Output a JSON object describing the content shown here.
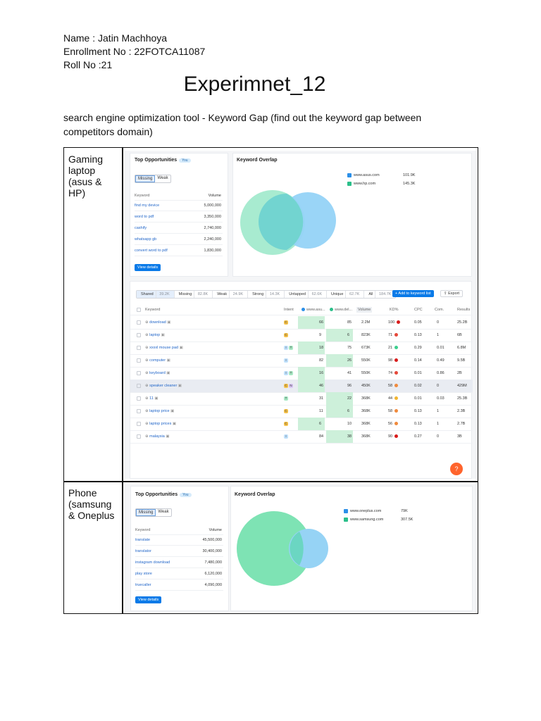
{
  "header": {
    "name": "Name :  Jatin Machhoya",
    "enrollment": "Enrollment No : 22FOTCA11087",
    "roll": "Roll No :21"
  },
  "title": "Experimnet_12",
  "intro": "search engine optimization tool - Keyword Gap (find out the keyword gap between competitors domain)",
  "rows": [
    {
      "label": "Gaming laptop (asus & HP)",
      "top": {
        "title": "Top Opportunities",
        "badge": "You",
        "tabs": [
          "Missing",
          "Weak"
        ],
        "col_keyword": "Keyword",
        "col_volume": "Volume",
        "items": [
          {
            "kw": "find my device",
            "vol": "5,000,000"
          },
          {
            "kw": "word to pdf",
            "vol": "3,350,000"
          },
          {
            "kw": "cashify",
            "vol": "2,740,000"
          },
          {
            "kw": "whatsapp gb",
            "vol": "2,240,000"
          },
          {
            "kw": "convert word to pdf",
            "vol": "1,830,000"
          }
        ],
        "button": "View details"
      },
      "overlap": {
        "title": "Keyword Overlap",
        "domains": [
          {
            "name": "www.asus.com",
            "count": "101.9K",
            "color": "#a4ebcf"
          },
          {
            "name": "www.hp.com",
            "count": "145.3K",
            "color": "#8ed0f7"
          }
        ]
      },
      "table": {
        "tabs": [
          {
            "label": "Shared",
            "n": "39.2K"
          },
          {
            "label": "Missing",
            "n": "82.8K"
          },
          {
            "label": "Weak",
            "n": "24.9K"
          },
          {
            "label": "Strong",
            "n": "14.3K"
          },
          {
            "label": "Untapped",
            "n": "62.6K"
          },
          {
            "label": "Unique",
            "n": "62.7K"
          },
          {
            "label": "All",
            "n": "184.7K"
          }
        ],
        "add_button": "+ Add to keyword list",
        "export_button": "Export",
        "headers": {
          "keyword": "Keyword",
          "intent": "Intent",
          "d1": "www.asu...",
          "d2": "www.del...",
          "volume": "Volume",
          "kd": "KD%",
          "cpc": "CPC",
          "com": "Com.",
          "results": "Results"
        },
        "rows": [
          {
            "kw": "download",
            "intent": [
              "C"
            ],
            "d1": "66",
            "d2": "85",
            "vol": "2.2M",
            "kd": "100",
            "kdc": "#d81b1b",
            "cpc": "0.05",
            "com": "0",
            "res": "25.2B"
          },
          {
            "kw": "laptop",
            "intent": [
              "C"
            ],
            "d1": "9",
            "d2": "6",
            "vol": "823K",
            "kd": "71",
            "kdc": "#e5483a",
            "cpc": "0.13",
            "com": "1",
            "res": "6B"
          },
          {
            "kw": "xxxxl mouse pad",
            "intent": [
              "I",
              "T"
            ],
            "d1": "18",
            "d2": "75",
            "vol": "673K",
            "kd": "21",
            "kdc": "#3ccf8e",
            "cpc": "0.29",
            "com": "0.01",
            "res": "6.8M"
          },
          {
            "kw": "computer",
            "intent": [
              "I"
            ],
            "d1": "82",
            "d2": "26",
            "vol": "550K",
            "kd": "98",
            "kdc": "#d81b1b",
            "cpc": "0.14",
            "com": "0.49",
            "res": "9.5B"
          },
          {
            "kw": "keyboard",
            "intent": [
              "I",
              "T"
            ],
            "d1": "16",
            "d2": "41",
            "vol": "550K",
            "kd": "74",
            "kdc": "#e5483a",
            "cpc": "0.01",
            "com": "0.86",
            "res": "2B"
          },
          {
            "kw": "speaker cleaner",
            "intent": [
              "C",
              "N"
            ],
            "d1": "46",
            "d2": "96",
            "vol": "450K",
            "kd": "58",
            "kdc": "#f08a3c",
            "cpc": "0.02",
            "com": "0",
            "res": "429M"
          },
          {
            "kw": "11",
            "intent": [
              "T"
            ],
            "d1": "31",
            "d2": "22",
            "vol": "368K",
            "kd": "44",
            "kdc": "#f2b530",
            "cpc": "0.01",
            "com": "0.03",
            "res": "25.3B"
          },
          {
            "kw": "laptop price",
            "intent": [
              "C"
            ],
            "d1": "11",
            "d2": "6",
            "vol": "368K",
            "kd": "58",
            "kdc": "#f08a3c",
            "cpc": "0.13",
            "com": "1",
            "res": "2.3B"
          },
          {
            "kw": "laptop prices",
            "intent": [
              "C"
            ],
            "d1": "6",
            "d2": "10",
            "vol": "368K",
            "kd": "56",
            "kdc": "#f08a3c",
            "cpc": "0.13",
            "com": "1",
            "res": "2.7B"
          },
          {
            "kw": "malaysia",
            "intent": [
              "I"
            ],
            "d1": "84",
            "d2": "38",
            "vol": "368K",
            "kd": "90",
            "kdc": "#d81b1b",
            "cpc": "0.27",
            "com": "0",
            "res": "3B"
          }
        ],
        "help": "?"
      }
    },
    {
      "label": "Phone (samsung & Oneplus",
      "top": {
        "title": "Top Opportunities",
        "badge": "You",
        "tabs": [
          "Missing",
          "Weak"
        ],
        "col_keyword": "Keyword",
        "col_volume": "Volume",
        "items": [
          {
            "kw": "translate",
            "vol": "45,500,000"
          },
          {
            "kw": "translator",
            "vol": "30,400,000"
          },
          {
            "kw": "instagram download",
            "vol": "7,480,000"
          },
          {
            "kw": "play store",
            "vol": "6,120,000"
          },
          {
            "kw": "truecaller",
            "vol": "4,090,000"
          }
        ],
        "button": "View details"
      },
      "overlap": {
        "title": "Keyword Overlap",
        "domains": [
          {
            "name": "www.oneplus.com",
            "count": "79K",
            "color": "#8ed0f7"
          },
          {
            "name": "www.samsung.com",
            "count": "307.5K",
            "color": "#7ee3b4"
          }
        ]
      }
    }
  ],
  "colors": {
    "accent": "#0a7ae8",
    "green_cell": "#d6f3e1",
    "green_cell_dark": "#b7ecc9"
  }
}
